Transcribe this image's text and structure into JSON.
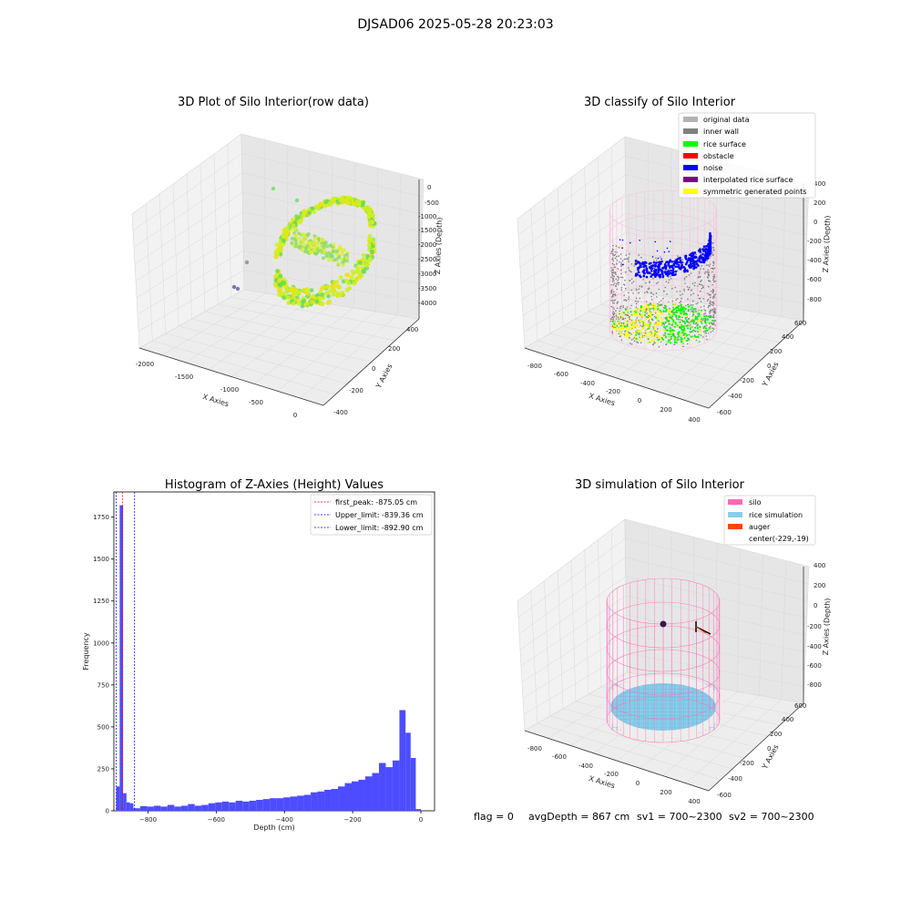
{
  "figure": {
    "suptitle": "DJSAD06 2025-05-28 20:23:03"
  },
  "status_bar": {
    "flag": "flag = 0",
    "avg_depth": "avgDepth = 867 cm",
    "sv1": "sv1 = 700~2300",
    "sv2": "sv2 = 700~2300"
  },
  "colors": {
    "original": "#b3b3b3",
    "inner_wall": "#808080",
    "rice_surface": "#00ff00",
    "obstacle": "#ff0000",
    "noise": "#0000ff",
    "interpolated": "#800080",
    "symmetric": "#ffff00",
    "silo": "#ff69b4",
    "rice_sim": "#87ceeb",
    "auger": "#ff4500",
    "hist_bar": "#4d4dff"
  },
  "chart_data": [
    {
      "type": "scatter",
      "title": "3D Plot of Silo Interior(row data)",
      "xlabel": "X Axies",
      "ylabel": "Y Axies",
      "zlabel": "Z Axies (Depth)",
      "x_ticks": [
        "-2000",
        "-1500",
        "-1000",
        "-500",
        "0"
      ],
      "y_ticks": [
        "-400",
        "-200",
        "0",
        "200",
        "400"
      ],
      "z_ticks": [
        "-4000",
        "-3500",
        "-3000",
        "-2500",
        "-2000",
        "-1500",
        "-1000",
        "-500",
        "0"
      ]
    },
    {
      "type": "scatter",
      "title": "3D classify of Silo Interior",
      "xlabel": "X Axies",
      "ylabel": "Y Axies",
      "zlabel": "Z Axies (Depth)",
      "x_ticks": [
        "-800",
        "-600",
        "-400",
        "-200",
        "0",
        "200",
        "400"
      ],
      "y_ticks": [
        "-600",
        "-400",
        "-200",
        "0",
        "200",
        "400",
        "600"
      ],
      "z_ticks": [
        "-800",
        "-600",
        "-400",
        "-200",
        "0",
        "200",
        "400"
      ],
      "legend": [
        {
          "label": "original data",
          "color": "#b3b3b3"
        },
        {
          "label": "inner wall",
          "color": "#808080"
        },
        {
          "label": "rice surface",
          "color": "#00ff00"
        },
        {
          "label": "obstacle",
          "color": "#ff0000"
        },
        {
          "label": "noise",
          "color": "#0000ff"
        },
        {
          "label": "interpolated rice surface",
          "color": "#800080"
        },
        {
          "label": "symmetric generated points",
          "color": "#ffff00"
        }
      ]
    },
    {
      "type": "bar",
      "title": "Histogram of Z-Axies (Height) Values",
      "xlabel": "Depth (cm)",
      "ylabel": "Frequency",
      "xlim": [
        -900,
        40
      ],
      "ylim": [
        0,
        1900
      ],
      "x_ticks": [
        -800,
        -600,
        -400,
        -200,
        0
      ],
      "y_ticks": [
        0,
        250,
        500,
        750,
        1000,
        1250,
        1500,
        1750
      ],
      "bins": [
        [
          -893,
          -883,
          145
        ],
        [
          -883,
          -873,
          1820
        ],
        [
          -873,
          -863,
          105
        ],
        [
          -863,
          -853,
          50
        ],
        [
          -853,
          -843,
          45
        ],
        [
          -843,
          -823,
          15
        ],
        [
          -823,
          -803,
          28
        ],
        [
          -803,
          -783,
          25
        ],
        [
          -783,
          -763,
          30
        ],
        [
          -763,
          -743,
          25
        ],
        [
          -743,
          -723,
          35
        ],
        [
          -723,
          -703,
          25
        ],
        [
          -703,
          -683,
          30
        ],
        [
          -683,
          -663,
          40
        ],
        [
          -663,
          -643,
          30
        ],
        [
          -643,
          -623,
          35
        ],
        [
          -623,
          -603,
          45
        ],
        [
          -603,
          -583,
          50
        ],
        [
          -583,
          -563,
          55
        ],
        [
          -563,
          -543,
          50
        ],
        [
          -543,
          -523,
          60
        ],
        [
          -523,
          -503,
          55
        ],
        [
          -503,
          -483,
          60
        ],
        [
          -483,
          -463,
          65
        ],
        [
          -463,
          -443,
          70
        ],
        [
          -443,
          -423,
          75
        ],
        [
          -423,
          -403,
          75
        ],
        [
          -403,
          -383,
          80
        ],
        [
          -383,
          -363,
          85
        ],
        [
          -363,
          -343,
          90
        ],
        [
          -343,
          -323,
          95
        ],
        [
          -323,
          -303,
          110
        ],
        [
          -303,
          -283,
          115
        ],
        [
          -283,
          -263,
          125
        ],
        [
          -263,
          -243,
          130
        ],
        [
          -243,
          -223,
          145
        ],
        [
          -223,
          -203,
          165
        ],
        [
          -203,
          -183,
          175
        ],
        [
          -183,
          -163,
          185
        ],
        [
          -163,
          -143,
          205
        ],
        [
          -143,
          -123,
          225
        ],
        [
          -123,
          -103,
          285
        ],
        [
          -103,
          -83,
          260
        ],
        [
          -83,
          -63,
          300
        ],
        [
          -63,
          -45,
          600
        ],
        [
          -45,
          -30,
          465
        ],
        [
          -30,
          -15,
          315
        ],
        [
          -15,
          0,
          10
        ]
      ],
      "lines": [
        {
          "label": "first_peak: -875.05 cm",
          "value": -875.05,
          "color": "#ff0000"
        },
        {
          "label": "Upper_limit: -839.36 cm",
          "value": -839.36,
          "color": "#0000ff"
        },
        {
          "label": "Lower_limit: -892.90 cm",
          "value": -892.9,
          "color": "#0000ff"
        }
      ]
    },
    {
      "type": "scatter",
      "title": "3D simulation of Silo Interior",
      "xlabel": "X Axies",
      "ylabel": "Y Axies",
      "zlabel": "Z Axies (Depth)",
      "x_ticks": [
        "-800",
        "-600",
        "-400",
        "-200",
        "0",
        "200",
        "400"
      ],
      "y_ticks": [
        "-600",
        "-400",
        "-200",
        "0",
        "200",
        "400",
        "600"
      ],
      "z_ticks": [
        "-800",
        "-600",
        "-400",
        "-200",
        "0",
        "200",
        "400"
      ],
      "legend": [
        {
          "label": "silo",
          "color": "#ff69b4"
        },
        {
          "label": "rice simulation",
          "color": "#87ceeb"
        },
        {
          "label": "auger",
          "color": "#ff4500"
        },
        {
          "label": "center(-229,-19)",
          "color": ""
        }
      ]
    }
  ]
}
